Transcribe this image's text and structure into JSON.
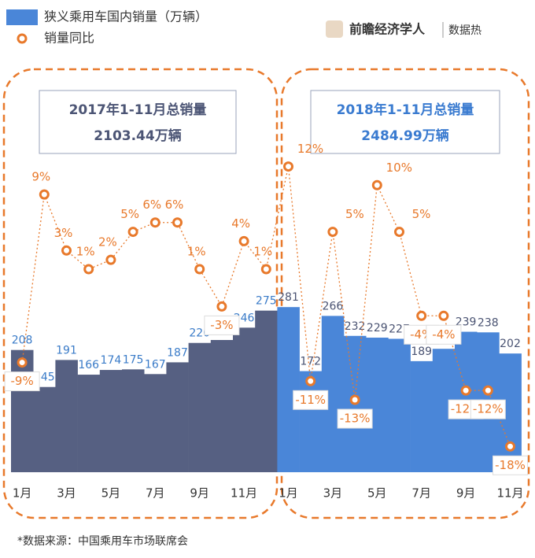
{
  "chart_data": {
    "type": "bar-line",
    "legend": [
      "狭义乘用车国内销量（万辆）",
      "销量同比"
    ],
    "brand": "前瞻经济学人",
    "brand_tag": "数据热",
    "panels": [
      {
        "title": "2017年1-11月总销量",
        "total": "2103.44万辆"
      },
      {
        "title": "2018年1-11月总销量",
        "total": "2484.99万辆"
      }
    ],
    "source": "*数据来源：中国乘用车市场联席会",
    "categories": [
      "1月",
      null,
      "3月",
      null,
      "5月",
      null,
      "7月",
      null,
      "9月",
      null,
      "11月",
      null,
      "1月",
      null,
      "3月",
      null,
      "5月",
      null,
      "7月",
      null,
      "9月",
      null,
      "11月"
    ],
    "series": [
      {
        "name": "狭义乘用车国内销量（万辆）",
        "color": "#4a86d8",
        "colors": [
          "#566082",
          "#566082",
          "#566082",
          "#566082",
          "#566082",
          "#566082",
          "#566082",
          "#566082",
          "#566082",
          "#566082",
          "#566082",
          "#566082",
          "#4a86d8",
          "#4a86d8",
          "#4a86d8",
          "#4a86d8",
          "#4a86d8",
          "#4a86d8",
          "#4a86d8",
          "#4a86d8",
          "#4a86d8",
          "#4a86d8",
          "#4a86d8"
        ],
        "values": [
          208,
          145,
          191,
          166,
          174,
          175,
          167,
          187,
          220,
          225,
          246,
          275,
          281,
          172,
          266,
          232,
          229,
          227,
          189,
          210,
          239,
          238,
          202
        ]
      },
      {
        "name": "销量同比",
        "color": "#e8792b",
        "axis": "y2",
        "values": [
          -9,
          9,
          3,
          1,
          2,
          5,
          6,
          6,
          1,
          -3,
          4,
          1,
          12,
          -11,
          5,
          -13,
          10,
          5,
          -4,
          -4,
          -12,
          -12,
          -18
        ],
        "value_labels": [
          "-9%",
          "9%",
          "3%",
          "1%",
          "2%",
          "5%",
          "6%",
          "6%",
          "1%",
          "-3%",
          "4%",
          "1%",
          "12%",
          "-11%",
          "5%",
          "-13%",
          "10%",
          "5%",
          "-4%",
          "-4%",
          "-12%",
          "-12%",
          "-18%"
        ]
      }
    ],
    "ylim": [
      0,
      300
    ],
    "y2lim": [
      -20,
      15
    ]
  }
}
